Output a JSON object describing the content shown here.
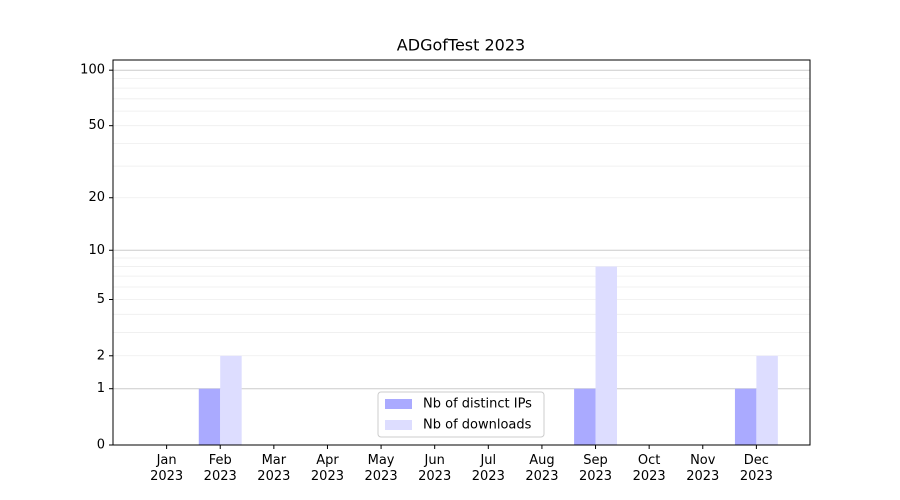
{
  "chart_data": {
    "type": "bar",
    "title": "ADGofTest 2023",
    "categories": [
      "Jan 2023",
      "Feb 2023",
      "Mar 2023",
      "Apr 2023",
      "May 2023",
      "Jun 2023",
      "Jul 2023",
      "Aug 2023",
      "Sep 2023",
      "Oct 2023",
      "Nov 2023",
      "Dec 2023"
    ],
    "series": [
      {
        "name": "Nb of distinct IPs",
        "color": "#aaaaff",
        "values": [
          0,
          1,
          0,
          0,
          0,
          0,
          0,
          0,
          1,
          0,
          0,
          1
        ]
      },
      {
        "name": "Nb of downloads",
        "color": "#ddddff",
        "values": [
          0,
          2,
          0,
          0,
          0,
          0,
          0,
          0,
          8,
          0,
          0,
          2
        ]
      }
    ],
    "yscale": "log1p",
    "ylim": [
      0,
      113.5
    ],
    "yticks": [
      0,
      1,
      2,
      5,
      10,
      20,
      50,
      100
    ],
    "major_grid": [
      1,
      10,
      100
    ],
    "minor_grid": [
      2,
      3,
      4,
      5,
      6,
      7,
      8,
      9,
      20,
      30,
      40,
      50,
      60,
      70,
      80,
      90
    ],
    "grid": true,
    "legend": "lower center"
  }
}
